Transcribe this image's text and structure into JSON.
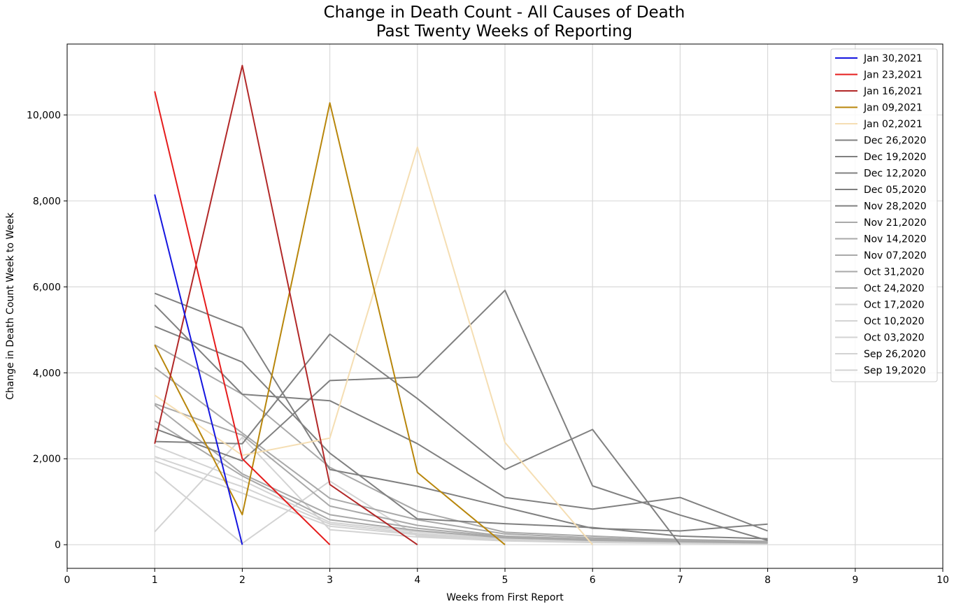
{
  "chart_data": {
    "type": "line",
    "title_line1": "Change in Death Count - All Causes of Death",
    "title_line2": "Past Twenty Weeks of Reporting",
    "xlabel": "Weeks from First Report",
    "ylabel": "Change in Death Count Week to Week",
    "xlim": [
      0,
      10
    ],
    "ylim": [
      -550,
      11650
    ],
    "xticks": [
      0,
      1,
      2,
      3,
      4,
      5,
      6,
      7,
      8,
      9,
      10
    ],
    "yticks": [
      0,
      2000,
      4000,
      6000,
      8000,
      10000
    ],
    "ytick_labels": [
      "0",
      "2,000",
      "4,000",
      "6,000",
      "8,000",
      "10,000"
    ],
    "grid": true,
    "legend_position": "top-right",
    "series": [
      {
        "name": "Jan 30,2021",
        "color": "#1515e0",
        "x": [
          1,
          2
        ],
        "values": [
          8150,
          0
        ]
      },
      {
        "name": "Jan 23,2021",
        "color": "#e51c1c",
        "x": [
          1,
          2,
          3
        ],
        "values": [
          10550,
          2000,
          0
        ]
      },
      {
        "name": "Jan 16,2021",
        "color": "#b22828",
        "x": [
          1,
          2,
          3,
          4
        ],
        "values": [
          2350,
          11150,
          1400,
          0
        ]
      },
      {
        "name": "Jan 09,2021",
        "color": "#b8860b",
        "x": [
          1,
          2,
          3,
          4,
          5
        ],
        "values": [
          4650,
          700,
          10280,
          1680,
          0
        ]
      },
      {
        "name": "Jan 02,2021",
        "color": "#f5deb3",
        "x": [
          1,
          2,
          3,
          4,
          5,
          6
        ],
        "values": [
          3480,
          2080,
          2480,
          9250,
          2380,
          0
        ]
      },
      {
        "name": "Dec 26,2020",
        "color": "#808080",
        "x": [
          1,
          2,
          3,
          4,
          5,
          6,
          7
        ],
        "values": [
          2400,
          2350,
          4900,
          3400,
          1750,
          2680,
          0
        ]
      },
      {
        "name": "Dec 19,2020",
        "color": "#808080",
        "x": [
          1,
          2,
          3,
          4,
          5,
          6,
          7,
          8
        ],
        "values": [
          5580,
          3500,
          3350,
          2350,
          1100,
          830,
          1100,
          320
        ]
      },
      {
        "name": "Dec 12,2020",
        "color": "#808080",
        "x": [
          1,
          2,
          3,
          4,
          5,
          6,
          7,
          8
        ],
        "values": [
          5850,
          5050,
          1750,
          1360,
          870,
          380,
          320,
          480
        ]
      },
      {
        "name": "Dec 05,2020",
        "color": "#808080",
        "x": [
          1,
          2,
          3,
          4,
          5,
          6,
          7,
          8
        ],
        "values": [
          5080,
          4250,
          2130,
          600,
          490,
          400,
          200,
          140
        ]
      },
      {
        "name": "Nov 28,2020",
        "color": "#808080",
        "x": [
          1,
          2,
          3,
          4,
          5,
          6,
          7,
          8
        ],
        "values": [
          2700,
          1950,
          3820,
          3900,
          5920,
          1370,
          690,
          100
        ]
      },
      {
        "name": "Nov 21,2020",
        "color": "#a9a9a9",
        "x": [
          1,
          2,
          3,
          4,
          5,
          6,
          7,
          8
        ],
        "values": [
          4650,
          3500,
          1800,
          780,
          290,
          200,
          120,
          80
        ]
      },
      {
        "name": "Nov 14,2020",
        "color": "#a9a9a9",
        "x": [
          1,
          2,
          3,
          4,
          5,
          6,
          7,
          8
        ],
        "values": [
          4120,
          2600,
          1080,
          580,
          250,
          160,
          100,
          70
        ]
      },
      {
        "name": "Nov 07,2020",
        "color": "#a9a9a9",
        "x": [
          1,
          2,
          3,
          4,
          5,
          6,
          7,
          8
        ],
        "values": [
          3280,
          2550,
          900,
          450,
          200,
          130,
          90,
          60
        ]
      },
      {
        "name": "Oct 31,2020",
        "color": "#a9a9a9",
        "x": [
          1,
          2,
          3,
          4,
          5,
          6,
          7,
          8
        ],
        "values": [
          3250,
          1650,
          700,
          380,
          180,
          110,
          80,
          50
        ]
      },
      {
        "name": "Oct 24,2020",
        "color": "#a9a9a9",
        "x": [
          1,
          2,
          3,
          4,
          5,
          6,
          7,
          8
        ],
        "values": [
          2880,
          1600,
          580,
          330,
          160,
          100,
          70,
          40
        ]
      },
      {
        "name": "Oct 17,2020",
        "color": "#d3d3d3",
        "x": [
          1,
          2,
          3,
          4,
          5,
          6,
          7,
          8
        ],
        "values": [
          2300,
          1500,
          520,
          300,
          140,
          90,
          60,
          40
        ]
      },
      {
        "name": "Oct 10,2020",
        "color": "#d3d3d3",
        "x": [
          1,
          2,
          3,
          4,
          5,
          6,
          7,
          8
        ],
        "values": [
          2050,
          1350,
          480,
          260,
          120,
          80,
          50,
          30
        ]
      },
      {
        "name": "Oct 03,2020",
        "color": "#d3d3d3",
        "x": [
          1,
          2,
          3,
          4,
          5,
          6,
          7,
          8
        ],
        "values": [
          1950,
          1200,
          430,
          230,
          110,
          70,
          40,
          30
        ]
      },
      {
        "name": "Sep 26,2020",
        "color": "#d3d3d3",
        "x": [
          1,
          2,
          3,
          4,
          5,
          6,
          7,
          8
        ],
        "values": [
          1700,
          30,
          1480,
          200,
          100,
          60,
          40,
          20
        ]
      },
      {
        "name": "Sep 19,2020",
        "color": "#d3d3d3",
        "x": [
          1,
          2,
          3,
          4,
          5,
          6,
          7,
          8
        ],
        "values": [
          300,
          2500,
          350,
          180,
          90,
          50,
          30,
          20
        ]
      }
    ]
  }
}
